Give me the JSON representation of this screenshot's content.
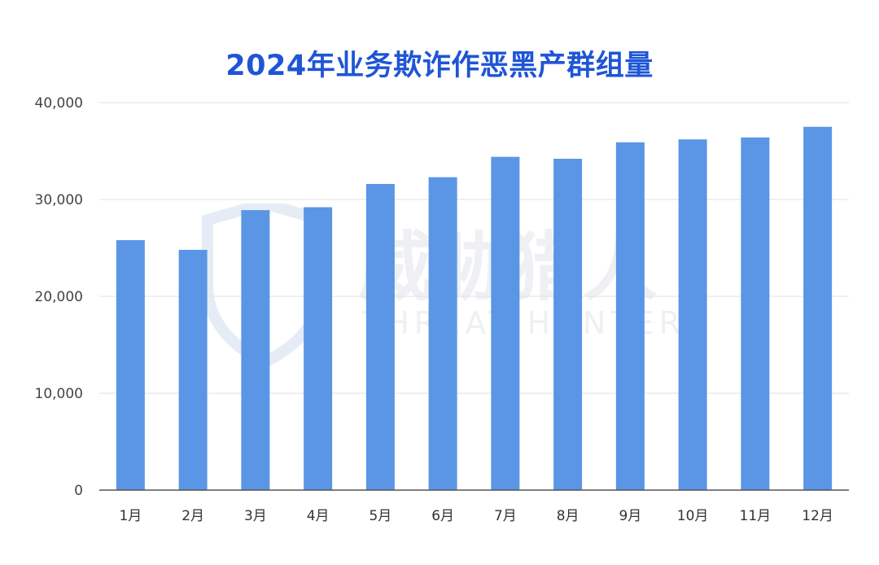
{
  "chart_data": {
    "type": "bar",
    "title": "2024年业务欺诈作恶黑产群组量",
    "categories": [
      "1月",
      "2月",
      "3月",
      "4月",
      "5月",
      "6月",
      "7月",
      "8月",
      "9月",
      "10月",
      "11月",
      "12月"
    ],
    "values": [
      25800,
      24800,
      28900,
      29200,
      31600,
      32300,
      34400,
      34200,
      35900,
      36200,
      36400,
      37500
    ],
    "ylim": [
      0,
      40000
    ],
    "yticks": [
      0,
      10000,
      20000,
      30000,
      40000
    ],
    "ytick_labels": [
      "0",
      "10,000",
      "20,000",
      "30,000",
      "40,000"
    ],
    "grid": true,
    "bar_color": "#5b95e5"
  },
  "watermark": {
    "brand_cn": "威胁猎人",
    "brand_en": "THREAT HUNTER"
  }
}
